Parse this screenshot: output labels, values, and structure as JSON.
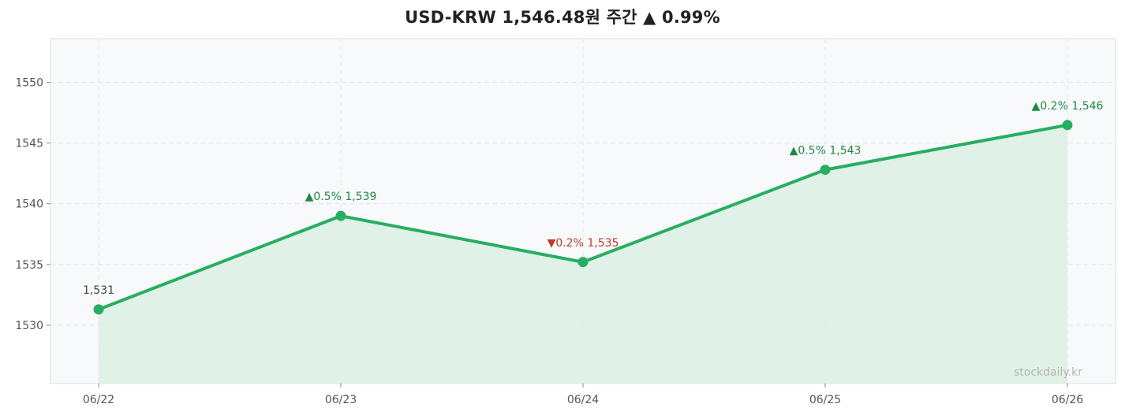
{
  "chart_data": {
    "type": "line",
    "title": "USD-KRW  1,546.48원  주간 ▲ 0.99%",
    "categories": [
      "06/22",
      "06/23",
      "06/24",
      "06/25",
      "06/26"
    ],
    "values": [
      1531.3,
      1539.0,
      1535.2,
      1542.8,
      1546.48
    ],
    "data_labels": [
      "1,531",
      "▲0.5%  1,539",
      "▼0.2%  1,535",
      "▲0.5%  1,543",
      "▲0.2%  1,546"
    ],
    "label_direction": [
      "none",
      "up",
      "down",
      "up",
      "up"
    ],
    "y_ticks": [
      1530,
      1535,
      1540,
      1545,
      1550
    ],
    "ylim": [
      1525.2,
      1553.6
    ],
    "xlabel": "",
    "ylabel": "",
    "grid": true,
    "watermark": "stockdaily.kr",
    "colors": {
      "line": "#27ae60",
      "fill": "#ddf0e5",
      "up": "#1e8a45",
      "down": "#c0392b",
      "neutral": "#444444",
      "plot_bg": "#f8f9fb",
      "grid": "#e4e6ea",
      "border": "#dcdfe3"
    }
  }
}
